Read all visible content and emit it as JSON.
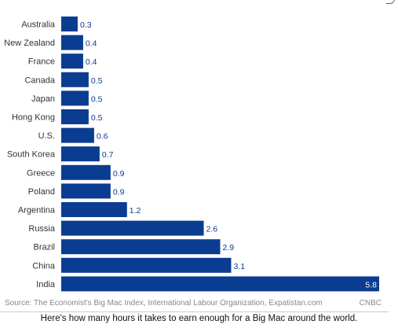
{
  "chart_data": {
    "type": "bar",
    "orientation": "horizontal",
    "categories": [
      "Australia",
      "New Zealand",
      "France",
      "Canada",
      "Japan",
      "Hong Kong",
      "U.S.",
      "South Korea",
      "Greece",
      "Poland",
      "Argentina",
      "Russia",
      "Brazil",
      "China",
      "India"
    ],
    "values": [
      0.3,
      0.4,
      0.4,
      0.5,
      0.5,
      0.5,
      0.6,
      0.7,
      0.9,
      0.9,
      1.2,
      2.6,
      2.9,
      3.1,
      5.8
    ],
    "value_labels": [
      "0.3",
      "0.4",
      "0.4",
      "0.5",
      "0.5",
      "0.5",
      "0.6",
      "0.7",
      "0.9",
      "0.9",
      "1.2",
      "2.6",
      "2.9",
      "3.1",
      "5.8"
    ],
    "xlim": [
      0,
      5.8
    ],
    "grid": false,
    "bar_color": "#0a3d91",
    "value_label_color": "#0a3d91",
    "last_value_label_color": "#ffffff"
  },
  "source": {
    "text": "Source: The Economist's Big Mac Index, International Labour Organization, Expatistan.com",
    "brand": "CNBC"
  },
  "caption": "Here's how many hours it takes to earn enough for a Big Mac around the world."
}
